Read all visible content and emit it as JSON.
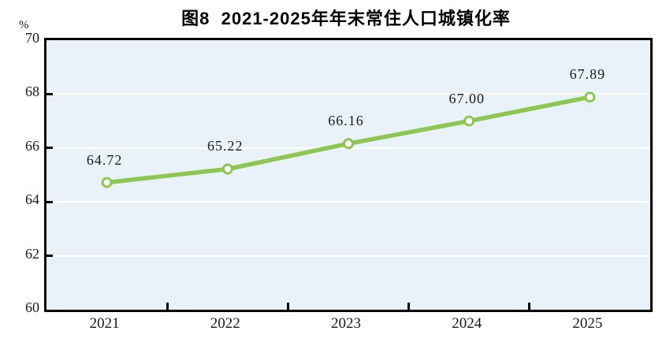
{
  "chart_data": {
    "type": "line",
    "title": "图8  2021-2025年年末常住人口城镇化率",
    "y_unit_label": "%",
    "categories": [
      "2021",
      "2022",
      "2023",
      "2024",
      "2025"
    ],
    "series": [
      {
        "name": "年末常住人口城镇化率",
        "values": [
          64.72,
          65.22,
          66.16,
          67.0,
          67.89
        ],
        "value_labels": [
          "64.72",
          "65.22",
          "66.16",
          "67.00",
          "67.89"
        ]
      }
    ],
    "ylim": [
      60,
      70
    ],
    "yticks": [
      60,
      62,
      64,
      66,
      68,
      70
    ],
    "gridline_values": [
      62,
      64,
      66,
      68
    ],
    "grid": "horizontal-white",
    "legend": "none",
    "colors": {
      "line": "#8DC751",
      "marker_fill": "#ffffff",
      "marker_stroke": "#8DC751",
      "plot_background": "#E9F2F8",
      "axis_border": "#000000",
      "gridline": "#ffffff",
      "text": "#1a1a1a"
    },
    "marker": "open-circle"
  }
}
